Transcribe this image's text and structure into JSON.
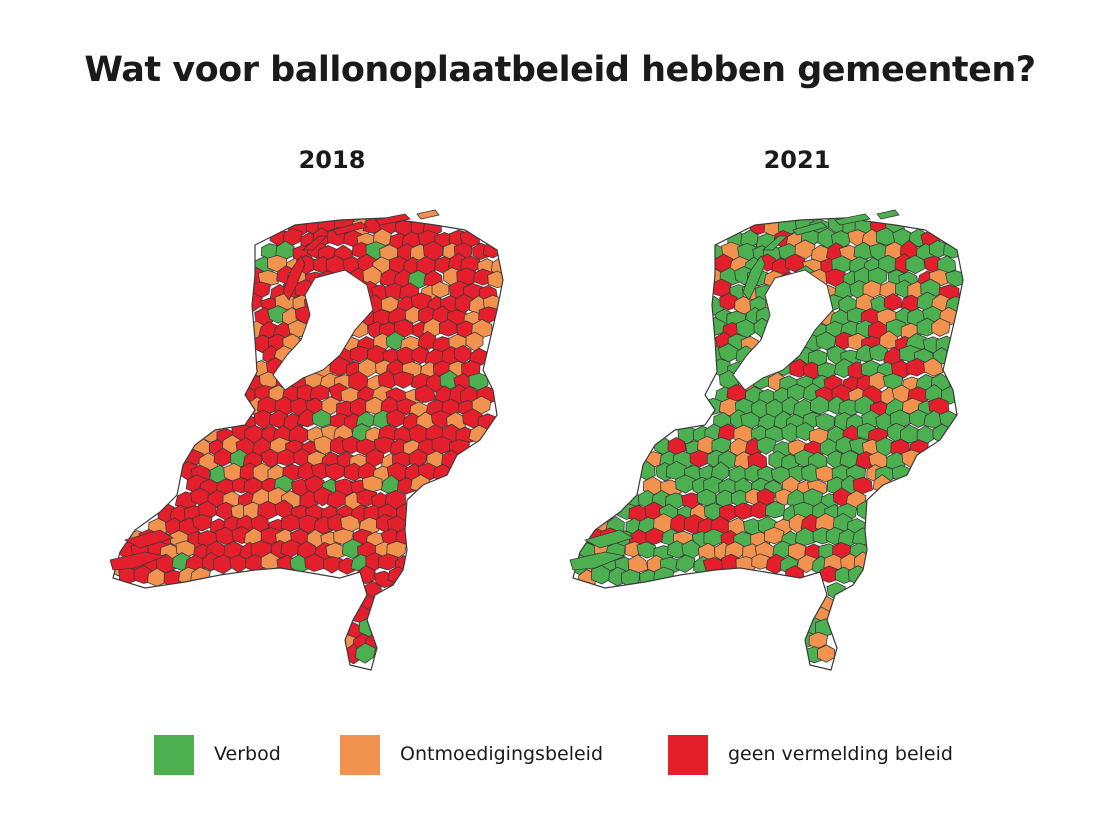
{
  "title": "Wat voor ballonoplaatbeleid hebben gemeenten?",
  "maps": [
    {
      "year": "2018",
      "mix": {
        "green": 0.06,
        "orange": 0.24,
        "red": 0.7
      }
    },
    {
      "year": "2021",
      "mix": {
        "green": 0.6,
        "orange": 0.24,
        "red": 0.16
      }
    }
  ],
  "legend": [
    {
      "label": "Verbod",
      "color": "#4caf50"
    },
    {
      "label": "Ontmoedigingsbeleid",
      "color": "#f2924f"
    },
    {
      "label": "geen vermelding beleid",
      "color": "#e41e2b"
    }
  ],
  "outline_color": "#3a3a3a"
}
